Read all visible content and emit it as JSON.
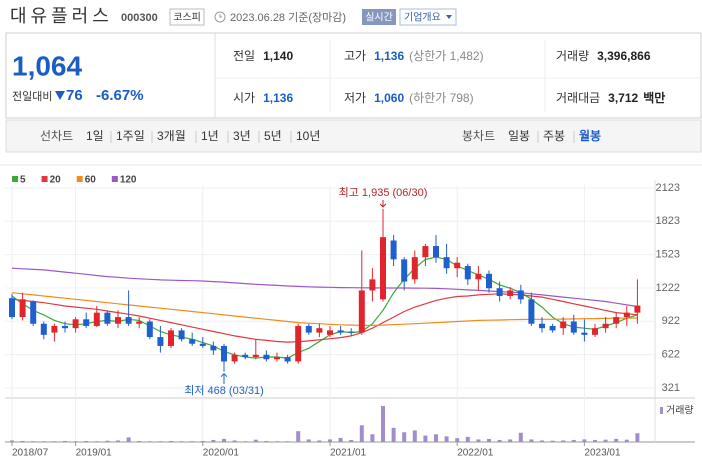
{
  "header": {
    "name": "대유플러스",
    "code": "000300",
    "market": "코스피",
    "date": "2023.06.28 기준(장마감)",
    "realtime": "실시간",
    "company_info": "기업개요"
  },
  "quote": {
    "price": "1,064",
    "change_label": "전일대비",
    "change": "76",
    "change_rate": "-6.67%",
    "rows": [
      [
        {
          "label": "전일",
          "value": "1,140",
          "color": "#222"
        },
        {
          "label": "고가",
          "value": "1,136",
          "note": "(상한가 1,482)",
          "color": "#1a5dc4"
        },
        {
          "label": "거래량",
          "value": "3,396,866",
          "color": "#222"
        }
      ],
      [
        {
          "label": "시가",
          "value": "1,136",
          "color": "#1a5dc4"
        },
        {
          "label": "저가",
          "value": "1,060",
          "note": "(하한가 798)",
          "color": "#1a5dc4"
        },
        {
          "label": "거래대금",
          "value": "3,712",
          "note": "백만",
          "color": "#222"
        }
      ]
    ]
  },
  "tabs": {
    "line_chart": "선차트",
    "periods": [
      "1일",
      "1주일",
      "3개월",
      "1년",
      "3년",
      "5년",
      "10년"
    ],
    "candle_chart": "봉차트",
    "candle_periods": [
      "일봉",
      "주봉",
      "월봉"
    ],
    "active_candle": 2
  },
  "chart_data": {
    "type": "candlestick",
    "categories": [
      "2018/07",
      null,
      null,
      null,
      null,
      null,
      "2019/01",
      null,
      null,
      null,
      null,
      null,
      null,
      null,
      null,
      null,
      null,
      null,
      "2020/01",
      null,
      null,
      null,
      null,
      null,
      null,
      null,
      null,
      null,
      null,
      null,
      "2021/01",
      null,
      null,
      null,
      null,
      null,
      null,
      null,
      null,
      null,
      null,
      null,
      "2022/01",
      null,
      null,
      null,
      null,
      null,
      null,
      null,
      null,
      null,
      null,
      null,
      "2023/01",
      null,
      null,
      null,
      null,
      null
    ],
    "open": [
      1130,
      960,
      1100,
      900,
      820,
      880,
      860,
      940,
      880,
      1000,
      900,
      960,
      900,
      920,
      780,
      700,
      840,
      760,
      720,
      700,
      700,
      560,
      620,
      600,
      620,
      580,
      600,
      560,
      880,
      820,
      800,
      840,
      830,
      820,
      1200,
      1120,
      1650,
      1480,
      1300,
      1500,
      1600,
      1500,
      1400,
      1420,
      1300,
      1350,
      1220,
      1150,
      1200,
      1120,
      900,
      880,
      860,
      920,
      820,
      800,
      860,
      900,
      960,
      1000
    ],
    "high": [
      1170,
      1180,
      1110,
      920,
      900,
      920,
      960,
      1000,
      1060,
      1020,
      1020,
      1200,
      960,
      940,
      880,
      860,
      860,
      820,
      780,
      740,
      720,
      640,
      640,
      760,
      660,
      640,
      620,
      900,
      900,
      900,
      880,
      880,
      860,
      1560,
      1400,
      1935,
      1700,
      1500,
      1560,
      1620,
      1700,
      1620,
      1500,
      1440,
      1420,
      1380,
      1280,
      1230,
      1250,
      1180,
      960,
      900,
      960,
      980,
      940,
      900,
      960,
      1000,
      1060,
      1300
    ],
    "low": [
      940,
      930,
      880,
      760,
      740,
      820,
      820,
      860,
      870,
      880,
      860,
      880,
      860,
      760,
      640,
      680,
      740,
      700,
      680,
      620,
      468,
      540,
      580,
      580,
      560,
      560,
      540,
      540,
      800,
      780,
      780,
      800,
      790,
      800,
      1100,
      1100,
      1420,
      1200,
      1260,
      1420,
      1450,
      1350,
      1320,
      1250,
      1200,
      1180,
      1100,
      1120,
      1080,
      880,
      820,
      820,
      800,
      800,
      740,
      780,
      820,
      860,
      880,
      900
    ],
    "close": [
      960,
      1120,
      900,
      800,
      880,
      860,
      940,
      880,
      1000,
      900,
      960,
      900,
      920,
      780,
      700,
      840,
      760,
      720,
      700,
      660,
      560,
      620,
      600,
      620,
      580,
      600,
      560,
      880,
      820,
      860,
      840,
      820,
      820,
      1200,
      1300,
      1680,
      1480,
      1280,
      1500,
      1600,
      1500,
      1400,
      1450,
      1300,
      1350,
      1220,
      1150,
      1200,
      1120,
      900,
      860,
      840,
      920,
      820,
      800,
      860,
      900,
      960,
      1000,
      1064
    ],
    "up_color": "#e0262c",
    "down_color": "#1f5fcf",
    "ma": [
      {
        "name": "5",
        "color": "#3aa93a",
        "values": [
          1150,
          1080,
          1020,
          980,
          930,
          900,
          890,
          900,
          920,
          930,
          920,
          940,
          930,
          880,
          830,
          800,
          780,
          760,
          730,
          700,
          650,
          620,
          600,
          590,
          600,
          600,
          590,
          640,
          680,
          740,
          800,
          830,
          820,
          830,
          900,
          1020,
          1180,
          1300,
          1400,
          1480,
          1500,
          1480,
          1420,
          1380,
          1340,
          1300,
          1250,
          1220,
          1180,
          1120,
          1050,
          960,
          900,
          870,
          860,
          850,
          880,
          910,
          950,
          980
        ]
      },
      {
        "name": "20",
        "color": "#e0393e",
        "values": [
          1120,
          1110,
          1100,
          1090,
          1075,
          1060,
          1050,
          1040,
          1030,
          1015,
          1000,
          985,
          970,
          950,
          930,
          910,
          890,
          870,
          850,
          830,
          810,
          790,
          775,
          760,
          750,
          740,
          735,
          738,
          745,
          755,
          765,
          775,
          790,
          820,
          860,
          910,
          960,
          1010,
          1050,
          1080,
          1110,
          1130,
          1145,
          1150,
          1160,
          1165,
          1170,
          1165,
          1160,
          1150,
          1140,
          1120,
          1100,
          1080,
          1060,
          1040,
          1020,
          1000,
          990,
          980
        ]
      },
      {
        "name": "60",
        "color": "#f08c1e",
        "values": [
          1180,
          1170,
          1160,
          1150,
          1140,
          1130,
          1120,
          1110,
          1100,
          1090,
          1080,
          1070,
          1060,
          1050,
          1040,
          1030,
          1020,
          1010,
          1000,
          990,
          980,
          970,
          960,
          950,
          940,
          930,
          920,
          910,
          905,
          900,
          895,
          890,
          888,
          886,
          885,
          888,
          892,
          896,
          900,
          905,
          910,
          915,
          920,
          925,
          930,
          932,
          934,
          936,
          938,
          940,
          940,
          940,
          942,
          944,
          945,
          946,
          948,
          950,
          951,
          952
        ]
      },
      {
        "name": "120",
        "color": "#9c58c8",
        "values": [
          1400,
          1395,
          1390,
          1385,
          1375,
          1365,
          1355,
          1345,
          1335,
          1325,
          1318,
          1310,
          1305,
          1300,
          1295,
          1292,
          1290,
          1288,
          1285,
          1280,
          1275,
          1268,
          1262,
          1255,
          1250,
          1245,
          1240,
          1236,
          1233,
          1230,
          1228,
          1226,
          1225,
          1224,
          1223,
          1222,
          1222,
          1222,
          1221,
          1220,
          1218,
          1215,
          1210,
          1205,
          1200,
          1195,
          1190,
          1185,
          1180,
          1170,
          1160,
          1150,
          1140,
          1130,
          1120,
          1110,
          1100,
          1085,
          1070,
          1055
        ]
      }
    ],
    "volume": {
      "name": "거래량",
      "color": "#a38ccc",
      "values": [
        0.6,
        0.4,
        0.3,
        0.3,
        0.3,
        0.4,
        0.3,
        0.4,
        0.3,
        0.5,
        0.6,
        1.8,
        0.4,
        0.3,
        0.3,
        0.4,
        0.3,
        0.3,
        0.4,
        0.8,
        1.2,
        0.6,
        0.3,
        0.9,
        0.4,
        0.3,
        0.3,
        4.2,
        1.0,
        0.6,
        1.0,
        1.6,
        0.8,
        6.5,
        3.0,
        14.0,
        5.5,
        3.8,
        4.5,
        2.5,
        3.0,
        2.2,
        1.5,
        2.0,
        1.0,
        1.2,
        0.8,
        1.0,
        3.6,
        1.0,
        0.6,
        0.5,
        0.6,
        0.8,
        1.0,
        0.8,
        0.9,
        1.2,
        0.9,
        3.4
      ]
    },
    "ylim": [
      321,
      2123
    ],
    "yticks": [
      2123,
      1823,
      1523,
      1222,
      922,
      622,
      321
    ],
    "annotations": {
      "high": "최고 1,935 (06/30)",
      "low": "최저 468 (03/31)"
    },
    "grid": true
  }
}
